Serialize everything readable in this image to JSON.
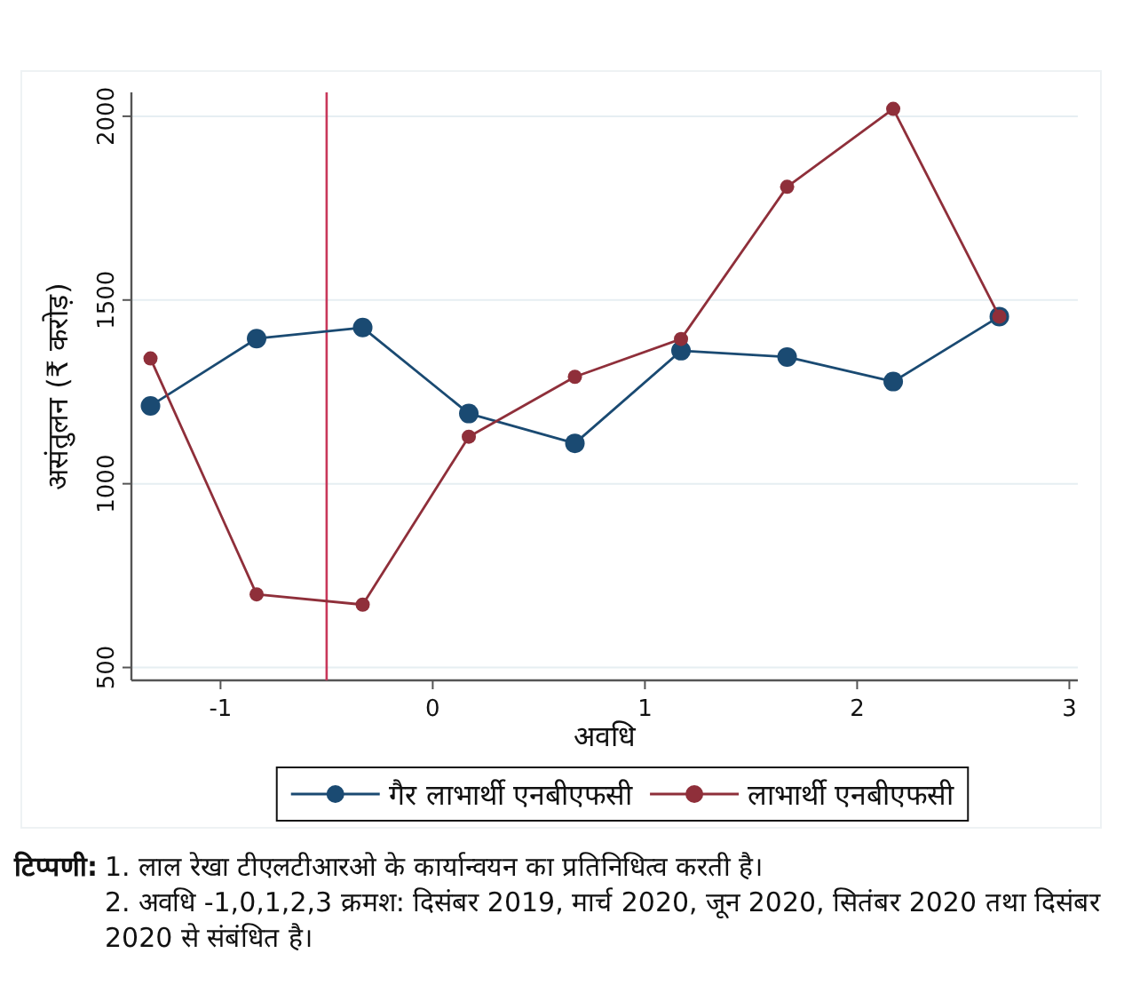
{
  "chart_data": {
    "type": "line",
    "xlabel": "अवधि",
    "ylabel": "असंतुलन (₹ करोड़)",
    "x": [
      -1.33,
      -0.83,
      -0.33,
      0.17,
      0.67,
      1.17,
      1.67,
      2.17,
      2.67
    ],
    "series": [
      {
        "name": "गैर लाभार्थी एनबीएफसी",
        "color": "#1a4a72",
        "values": [
          1212,
          1395,
          1425,
          1191,
          1110,
          1362,
          1345,
          1278,
          1455
        ]
      },
      {
        "name": "लाभार्थी एनबीएफसी",
        "color": "#8f2f3a",
        "values": [
          1341,
          699,
          671,
          1128,
          1291,
          1394,
          1808,
          2020,
          1455
        ]
      }
    ],
    "xlim": [
      -1.42,
      3.04
    ],
    "ylim": [
      465,
      2065
    ],
    "xticks": [
      -1,
      0,
      1,
      2,
      3
    ],
    "yticks": [
      500,
      1000,
      1500,
      2000
    ],
    "ref_lines": [
      {
        "axis": "x",
        "value": -0.5,
        "color": "#c8375a"
      }
    ],
    "grid": "y",
    "legend": "bottom",
    "marker": "circle",
    "line_style": "solid",
    "annotations": [
      "**टिप्पणी:** 1. लाल रेखा टीएलटीआरओ के कार्यान्वयन का प्रतिनिधित्व करती है।",
      "2. अवधि -1,0,1,2,3 क्रमश: दिसंबर 2019, मार्च 2020, जून 2020, सितंबर 2020 तथा दिसंबर 2020 से संबंधित है।"
    ]
  }
}
